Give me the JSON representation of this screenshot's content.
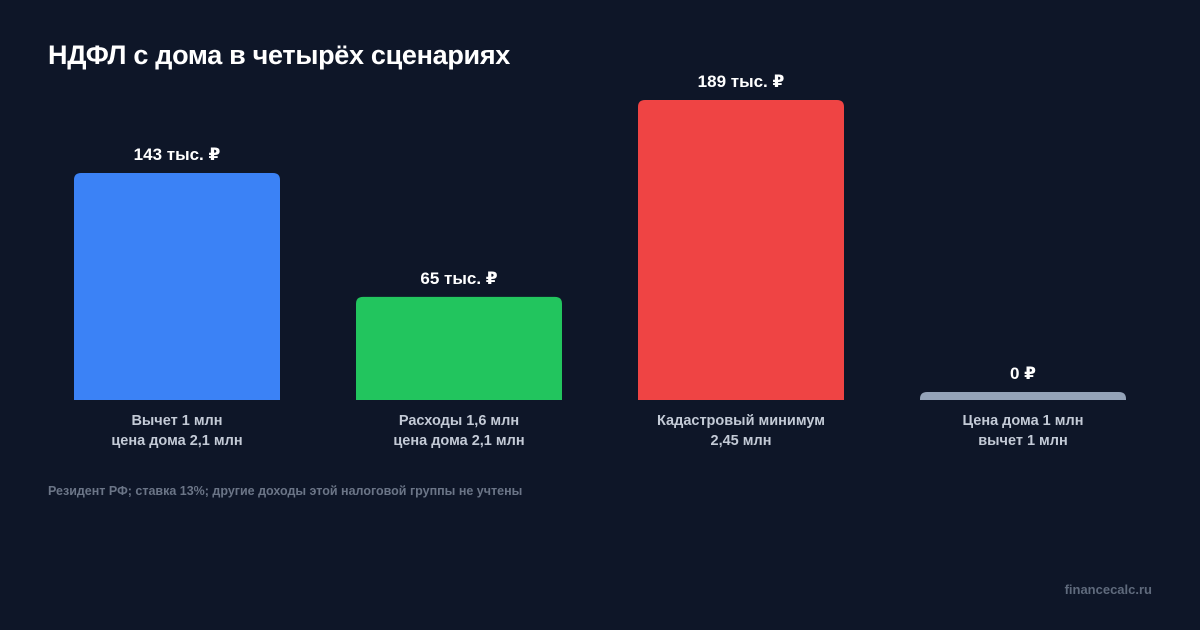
{
  "title": "НДФЛ с дома в четырёх сценариях",
  "footnote": "Резидент РФ; ставка 13%; другие доходы этой налоговой группы не учтены",
  "watermark": "financecalc.ru",
  "chart_data": {
    "type": "bar",
    "title": "НДФЛ с дома в четырёх сценариях",
    "categories": [
      [
        "Вычет 1 млн",
        "цена дома 2,1 млн"
      ],
      [
        "Расходы 1,6 млн",
        "цена дома 2,1 млн"
      ],
      [
        "Кадастровый минимум",
        "2,45 млн"
      ],
      [
        "Цена дома 1 млн",
        "вычет 1 млн"
      ]
    ],
    "values": [
      143,
      65,
      189,
      0
    ],
    "value_labels": [
      "143 тыс. ₽",
      "65 тыс. ₽",
      "189 тыс. ₽",
      "0 ₽"
    ],
    "unit": "тыс. ₽",
    "colors": [
      "#3b82f6",
      "#22c55e",
      "#ef4444",
      "#94a3b8"
    ],
    "ylim": [
      0,
      189
    ],
    "grid": false,
    "legend": "none"
  }
}
